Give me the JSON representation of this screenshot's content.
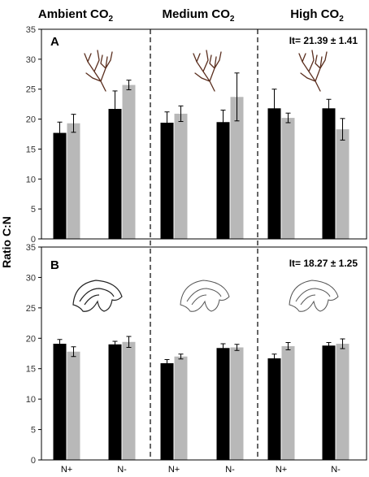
{
  "figure": {
    "ylabel": "Ratio C:N",
    "groups": [
      {
        "name": "Ambient CO",
        "sub": "2"
      },
      {
        "name": "Medium CO",
        "sub": "2"
      },
      {
        "name": "High CO",
        "sub": "2"
      }
    ],
    "x_ticks": [
      "N+",
      "N-",
      "N+",
      "N-",
      "N+",
      "N-"
    ]
  },
  "chart_data": [
    {
      "type": "bar",
      "panel": "A",
      "annotation": "It= 21.39 ± 1.41",
      "ylim": [
        0,
        35
      ],
      "yticks": [
        0,
        5,
        10,
        15,
        20,
        25,
        30,
        35
      ],
      "categories": [
        "N+",
        "N-",
        "N+",
        "N-",
        "N+",
        "N-"
      ],
      "colors": [
        "#000000",
        "#b8b8b8"
      ],
      "series": [
        {
          "values": [
            17.7,
            21.7,
            19.4,
            19.5,
            21.8,
            21.8
          ],
          "errors": [
            1.8,
            3.0,
            1.8,
            2.0,
            3.2,
            1.5
          ]
        },
        {
          "values": [
            19.3,
            25.7,
            20.9,
            23.7,
            20.2,
            18.3
          ],
          "errors": [
            1.5,
            0.8,
            1.3,
            4.0,
            0.8,
            1.8
          ]
        }
      ]
    },
    {
      "type": "bar",
      "panel": "B",
      "annotation": "It= 18.27 ± 1.25",
      "ylim": [
        0,
        35
      ],
      "yticks": [
        0,
        5,
        10,
        15,
        20,
        25,
        30,
        35
      ],
      "categories": [
        "N+",
        "N-",
        "N+",
        "N-",
        "N+",
        "N-"
      ],
      "colors": [
        "#000000",
        "#b8b8b8"
      ],
      "series": [
        {
          "values": [
            19.1,
            19.0,
            15.9,
            18.4,
            16.7,
            18.8
          ],
          "errors": [
            0.7,
            0.5,
            0.6,
            0.7,
            0.7,
            0.5
          ]
        },
        {
          "values": [
            17.8,
            19.4,
            17.0,
            18.5,
            18.7,
            19.1
          ],
          "errors": [
            0.8,
            0.9,
            0.4,
            0.5,
            0.6,
            0.8
          ]
        }
      ]
    }
  ]
}
